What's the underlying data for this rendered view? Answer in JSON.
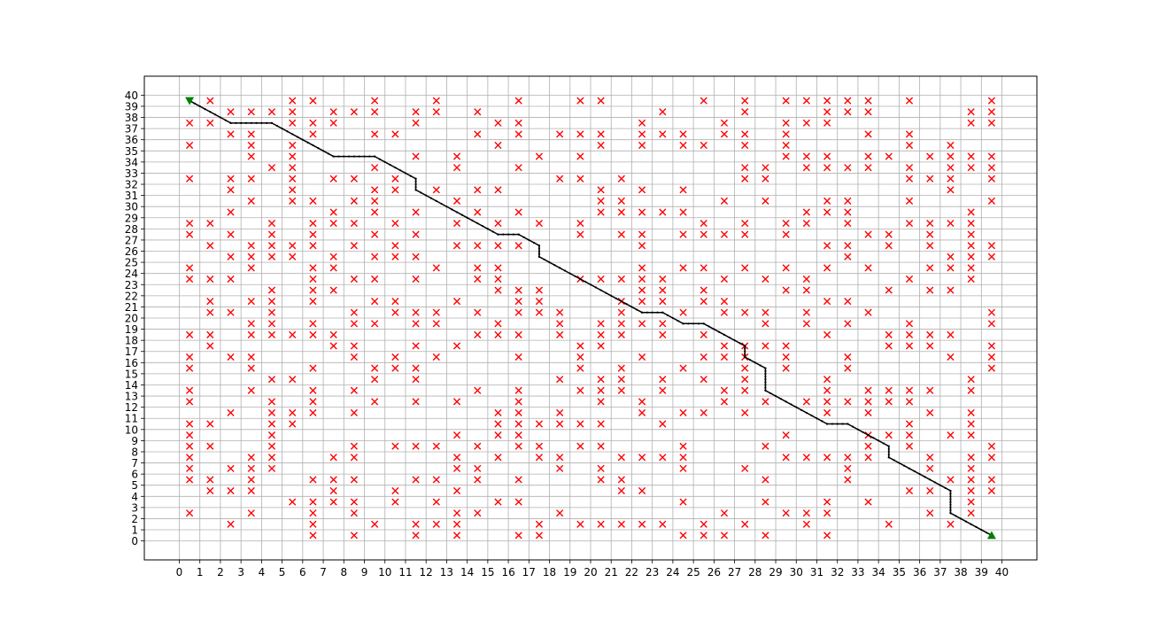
{
  "chart_data": {
    "type": "scatter",
    "title": "",
    "xlabel": "",
    "ylabel": "",
    "xlim": [
      -1.7,
      41.7
    ],
    "ylim": [
      -1.7,
      41.7
    ],
    "x_ticks": [
      0,
      1,
      2,
      3,
      4,
      5,
      6,
      7,
      8,
      9,
      10,
      11,
      12,
      13,
      14,
      15,
      16,
      17,
      18,
      19,
      20,
      21,
      22,
      23,
      24,
      25,
      26,
      27,
      28,
      29,
      30,
      31,
      32,
      33,
      34,
      35,
      36,
      37,
      38,
      39,
      40
    ],
    "y_ticks": [
      0,
      1,
      2,
      3,
      4,
      5,
      6,
      7,
      8,
      9,
      10,
      11,
      12,
      13,
      14,
      15,
      16,
      17,
      18,
      19,
      20,
      21,
      22,
      23,
      24,
      25,
      26,
      27,
      28,
      29,
      30,
      31,
      32,
      33,
      34,
      35,
      36,
      37,
      38,
      39,
      40
    ],
    "grid": true,
    "colors": {
      "obstacle": "#ff0000",
      "path": "#000000",
      "start_goal": "#008000",
      "grid": "#b0b0b0"
    },
    "start": [
      0.5,
      39.5
    ],
    "goal": [
      39.5,
      0.5
    ],
    "path": [
      [
        0.5,
        39.5
      ],
      [
        2.5,
        37.5
      ],
      [
        4.5,
        37.5
      ],
      [
        7.5,
        34.5
      ],
      [
        9.5,
        34.5
      ],
      [
        11.5,
        32.5
      ],
      [
        11.5,
        31.5
      ],
      [
        15.5,
        27.5
      ],
      [
        16.5,
        27.5
      ],
      [
        17.5,
        26.5
      ],
      [
        17.5,
        25.5
      ],
      [
        22.5,
        20.5
      ],
      [
        23.5,
        20.5
      ],
      [
        24.5,
        19.5
      ],
      [
        25.5,
        19.5
      ],
      [
        27.5,
        17.5
      ],
      [
        27.5,
        16.5
      ],
      [
        28.5,
        15.5
      ],
      [
        28.5,
        13.5
      ],
      [
        31.5,
        10.5
      ],
      [
        32.5,
        10.5
      ],
      [
        34.5,
        8.5
      ],
      [
        34.5,
        7.5
      ],
      [
        37.5,
        4.5
      ],
      [
        37.5,
        2.5
      ],
      [
        39.5,
        0.5
      ]
    ],
    "obstacle_rows": [
      {
        "y": 39.5,
        "x": [
          1.5,
          5.5,
          6.5,
          9.5,
          12.5,
          16.5,
          19.5,
          20.5,
          25.5,
          27.5,
          29.5,
          30.5,
          31.5,
          32.5,
          33.5,
          35.5,
          39.5
        ]
      },
      {
        "y": 38.5,
        "x": [
          2.5,
          3.5,
          4.5,
          5.5,
          7.5,
          8.5,
          9.5,
          11.5,
          12.5,
          14.5,
          23.5,
          27.5,
          31.5,
          32.5,
          33.5,
          38.5,
          39.5
        ]
      },
      {
        "y": 37.5,
        "x": [
          0.5,
          1.5,
          5.5,
          6.5,
          7.5,
          11.5,
          15.5,
          16.5,
          22.5,
          26.5,
          29.5,
          30.5,
          31.5,
          38.5,
          39.5
        ]
      },
      {
        "y": 36.5,
        "x": [
          2.5,
          3.5,
          6.5,
          9.5,
          10.5,
          14.5,
          16.5,
          18.5,
          19.5,
          20.5,
          22.5,
          23.5,
          24.5,
          26.5,
          27.5,
          29.5,
          33.5,
          35.5
        ]
      },
      {
        "y": 35.5,
        "x": [
          0.5,
          3.5,
          5.5,
          15.5,
          20.5,
          22.5,
          24.5,
          25.5,
          27.5,
          29.5,
          35.5,
          37.5
        ]
      },
      {
        "y": 34.5,
        "x": [
          3.5,
          5.5,
          11.5,
          13.5,
          17.5,
          19.5,
          29.5,
          30.5,
          31.5,
          33.5,
          34.5,
          36.5,
          37.5,
          38.5,
          39.5
        ]
      },
      {
        "y": 33.5,
        "x": [
          4.5,
          5.5,
          9.5,
          13.5,
          16.5,
          27.5,
          28.5,
          30.5,
          31.5,
          32.5,
          33.5,
          35.5,
          37.5,
          38.5,
          39.5
        ]
      },
      {
        "y": 32.5,
        "x": [
          0.5,
          2.5,
          3.5,
          5.5,
          7.5,
          8.5,
          10.5,
          18.5,
          19.5,
          21.5,
          27.5,
          28.5,
          35.5,
          36.5,
          37.5,
          39.5
        ]
      },
      {
        "y": 31.5,
        "x": [
          2.5,
          5.5,
          9.5,
          10.5,
          12.5,
          14.5,
          15.5,
          20.5,
          22.5,
          24.5,
          37.5
        ]
      },
      {
        "y": 30.5,
        "x": [
          3.5,
          5.5,
          6.5,
          8.5,
          9.5,
          13.5,
          20.5,
          21.5,
          26.5,
          28.5,
          31.5,
          32.5,
          35.5,
          39.5
        ]
      },
      {
        "y": 29.5,
        "x": [
          2.5,
          7.5,
          9.5,
          11.5,
          14.5,
          16.5,
          20.5,
          21.5,
          22.5,
          23.5,
          24.5,
          30.5,
          31.5,
          32.5,
          38.5
        ]
      },
      {
        "y": 28.5,
        "x": [
          0.5,
          1.5,
          4.5,
          6.5,
          7.5,
          8.5,
          10.5,
          13.5,
          15.5,
          17.5,
          19.5,
          25.5,
          27.5,
          29.5,
          30.5,
          32.5,
          35.5,
          36.5,
          37.5,
          38.5
        ]
      },
      {
        "y": 27.5,
        "x": [
          0.5,
          2.5,
          4.5,
          6.5,
          9.5,
          11.5,
          19.5,
          21.5,
          22.5,
          24.5,
          25.5,
          26.5,
          27.5,
          29.5,
          33.5,
          34.5,
          36.5,
          38.5
        ]
      },
      {
        "y": 26.5,
        "x": [
          1.5,
          3.5,
          4.5,
          5.5,
          6.5,
          8.5,
          10.5,
          13.5,
          14.5,
          15.5,
          16.5,
          22.5,
          31.5,
          32.5,
          34.5,
          36.5,
          38.5,
          39.5
        ]
      },
      {
        "y": 25.5,
        "x": [
          2.5,
          3.5,
          4.5,
          5.5,
          7.5,
          9.5,
          10.5,
          11.5,
          32.5,
          37.5,
          38.5,
          39.5
        ]
      },
      {
        "y": 24.5,
        "x": [
          0.5,
          3.5,
          6.5,
          7.5,
          12.5,
          14.5,
          15.5,
          22.5,
          24.5,
          25.5,
          27.5,
          29.5,
          31.5,
          33.5,
          36.5,
          37.5,
          38.5
        ]
      },
      {
        "y": 23.5,
        "x": [
          0.5,
          1.5,
          2.5,
          6.5,
          8.5,
          9.5,
          11.5,
          14.5,
          15.5,
          19.5,
          20.5,
          21.5,
          22.5,
          23.5,
          26.5,
          28.5,
          30.5,
          35.5,
          38.5
        ]
      },
      {
        "y": 22.5,
        "x": [
          4.5,
          6.5,
          7.5,
          15.5,
          16.5,
          17.5,
          22.5,
          23.5,
          25.5,
          29.5,
          30.5,
          34.5,
          36.5,
          37.5
        ]
      },
      {
        "y": 21.5,
        "x": [
          1.5,
          3.5,
          4.5,
          6.5,
          9.5,
          10.5,
          13.5,
          16.5,
          17.5,
          21.5,
          22.5,
          23.5,
          25.5,
          26.5,
          31.5,
          32.5
        ]
      },
      {
        "y": 20.5,
        "x": [
          1.5,
          2.5,
          4.5,
          8.5,
          10.5,
          11.5,
          12.5,
          14.5,
          16.5,
          17.5,
          18.5,
          21.5,
          24.5,
          26.5,
          27.5,
          28.5,
          30.5,
          33.5,
          39.5
        ]
      },
      {
        "y": 19.5,
        "x": [
          3.5,
          4.5,
          6.5,
          8.5,
          9.5,
          11.5,
          12.5,
          15.5,
          18.5,
          20.5,
          21.5,
          22.5,
          23.5,
          28.5,
          30.5,
          32.5,
          35.5,
          39.5
        ]
      },
      {
        "y": 18.5,
        "x": [
          0.5,
          1.5,
          3.5,
          4.5,
          5.5,
          6.5,
          7.5,
          14.5,
          15.5,
          16.5,
          18.5,
          20.5,
          21.5,
          23.5,
          25.5,
          31.5,
          34.5,
          35.5,
          36.5,
          37.5
        ]
      },
      {
        "y": 17.5,
        "x": [
          1.5,
          7.5,
          8.5,
          11.5,
          13.5,
          19.5,
          20.5,
          26.5,
          27.5,
          28.5,
          29.5,
          34.5,
          35.5,
          36.5,
          39.5
        ]
      },
      {
        "y": 16.5,
        "x": [
          0.5,
          2.5,
          3.5,
          8.5,
          10.5,
          12.5,
          16.5,
          19.5,
          22.5,
          25.5,
          26.5,
          27.5,
          29.5,
          32.5,
          37.5,
          39.5
        ]
      },
      {
        "y": 15.5,
        "x": [
          0.5,
          3.5,
          6.5,
          9.5,
          10.5,
          11.5,
          19.5,
          21.5,
          24.5,
          27.5,
          29.5,
          32.5,
          39.5
        ]
      },
      {
        "y": 14.5,
        "x": [
          4.5,
          5.5,
          9.5,
          11.5,
          18.5,
          20.5,
          21.5,
          23.5,
          25.5,
          27.5,
          31.5,
          38.5
        ]
      },
      {
        "y": 13.5,
        "x": [
          0.5,
          3.5,
          6.5,
          8.5,
          14.5,
          16.5,
          19.5,
          20.5,
          21.5,
          23.5,
          26.5,
          27.5,
          31.5,
          33.5,
          34.5,
          35.5,
          36.5,
          38.5
        ]
      },
      {
        "y": 12.5,
        "x": [
          0.5,
          4.5,
          6.5,
          9.5,
          11.5,
          13.5,
          16.5,
          20.5,
          22.5,
          26.5,
          28.5,
          30.5,
          31.5,
          32.5,
          33.5,
          34.5,
          35.5
        ]
      },
      {
        "y": 11.5,
        "x": [
          2.5,
          4.5,
          5.5,
          6.5,
          8.5,
          15.5,
          16.5,
          18.5,
          22.5,
          24.5,
          25.5,
          27.5,
          31.5,
          33.5,
          36.5,
          38.5
        ]
      },
      {
        "y": 10.5,
        "x": [
          0.5,
          1.5,
          4.5,
          5.5,
          15.5,
          16.5,
          17.5,
          18.5,
          19.5,
          20.5,
          23.5,
          35.5,
          38.5
        ]
      },
      {
        "y": 9.5,
        "x": [
          0.5,
          4.5,
          13.5,
          15.5,
          16.5,
          29.5,
          33.5,
          34.5,
          35.5,
          37.5,
          38.5
        ]
      },
      {
        "y": 8.5,
        "x": [
          0.5,
          1.5,
          4.5,
          8.5,
          10.5,
          11.5,
          12.5,
          14.5,
          16.5,
          17.5,
          19.5,
          20.5,
          24.5,
          28.5,
          33.5,
          35.5,
          39.5
        ]
      },
      {
        "y": 7.5,
        "x": [
          0.5,
          3.5,
          4.5,
          7.5,
          8.5,
          13.5,
          15.5,
          17.5,
          18.5,
          21.5,
          22.5,
          23.5,
          24.5,
          29.5,
          30.5,
          31.5,
          32.5,
          33.5,
          36.5,
          38.5,
          39.5
        ]
      },
      {
        "y": 6.5,
        "x": [
          0.5,
          2.5,
          3.5,
          4.5,
          13.5,
          14.5,
          18.5,
          20.5,
          24.5,
          27.5,
          32.5,
          36.5,
          38.5
        ]
      },
      {
        "y": 5.5,
        "x": [
          0.5,
          1.5,
          3.5,
          6.5,
          7.5,
          8.5,
          11.5,
          12.5,
          14.5,
          16.5,
          20.5,
          21.5,
          28.5,
          32.5,
          37.5,
          38.5,
          39.5
        ]
      },
      {
        "y": 4.5,
        "x": [
          1.5,
          2.5,
          3.5,
          7.5,
          10.5,
          13.5,
          21.5,
          22.5,
          35.5,
          36.5,
          38.5,
          39.5
        ]
      },
      {
        "y": 3.5,
        "x": [
          5.5,
          6.5,
          7.5,
          8.5,
          10.5,
          12.5,
          15.5,
          16.5,
          24.5,
          28.5,
          31.5,
          33.5,
          38.5
        ]
      },
      {
        "y": 2.5,
        "x": [
          0.5,
          3.5,
          6.5,
          8.5,
          13.5,
          14.5,
          18.5,
          26.5,
          29.5,
          30.5,
          31.5,
          36.5,
          38.5
        ]
      },
      {
        "y": 1.5,
        "x": [
          2.5,
          6.5,
          9.5,
          11.5,
          12.5,
          13.5,
          17.5,
          19.5,
          20.5,
          21.5,
          22.5,
          23.5,
          25.5,
          27.5,
          30.5,
          34.5,
          37.5
        ]
      },
      {
        "y": 0.5,
        "x": [
          6.5,
          8.5,
          11.5,
          13.5,
          16.5,
          17.5,
          24.5,
          25.5,
          26.5,
          28.5,
          31.5
        ]
      }
    ]
  }
}
